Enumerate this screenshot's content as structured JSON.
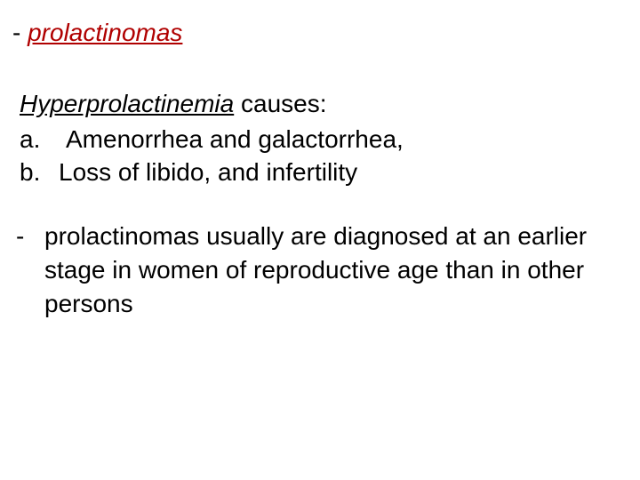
{
  "colors": {
    "text": "#000000",
    "accent_red": "#b00000",
    "background": "#ffffff"
  },
  "typography": {
    "base_fontsize_pt": 21,
    "line_height": 1.35,
    "font_family": "Arial"
  },
  "title": {
    "dash": "-",
    "text": "prolactinomas"
  },
  "causes": {
    "term": "Hyperprolactinemia",
    "heading_suffix": " causes:",
    "items": [
      {
        "label": "a.",
        "text": "Amenorrhea and galactorrhea,"
      },
      {
        "label": "b.",
        "text": "Loss of libido, and infertility"
      }
    ]
  },
  "paragraph": {
    "dash": "-",
    "text": "prolactinomas usually are diagnosed at an earlier stage in women of reproductive age than in other persons"
  }
}
